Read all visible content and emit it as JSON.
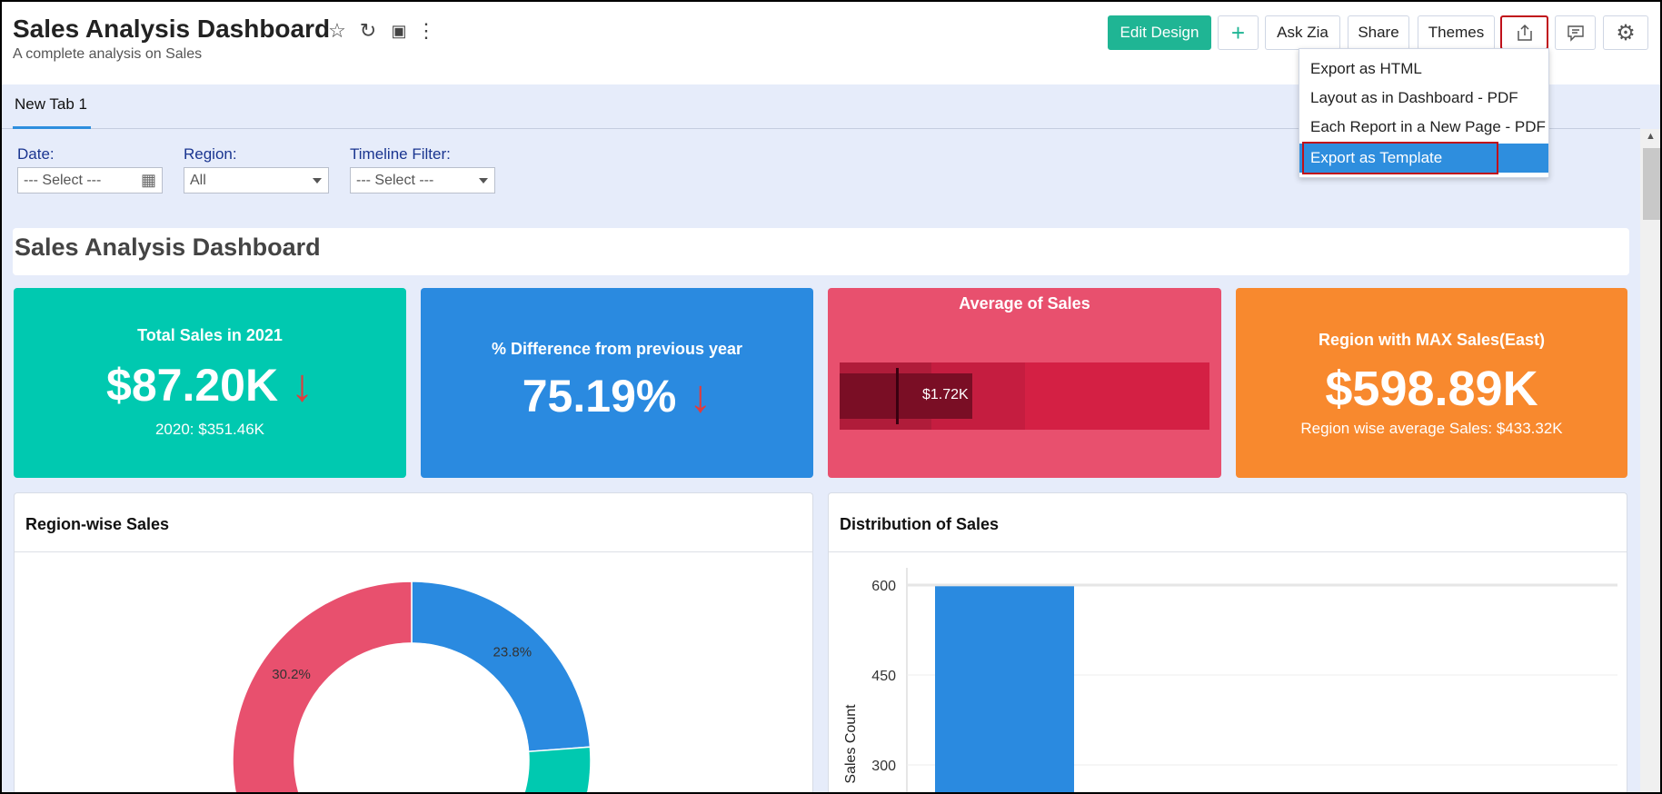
{
  "header": {
    "title": "Sales Analysis Dashboard",
    "subtitle": "A complete analysis on Sales",
    "icons": [
      "star-icon",
      "refresh-icon",
      "save-icon",
      "more-vertical-icon"
    ],
    "buttons": {
      "edit_design": "Edit Design",
      "add": "+",
      "ask_zia": "Ask Zia",
      "share": "Share",
      "themes": "Themes"
    }
  },
  "export_menu": {
    "items": [
      "Export as HTML",
      "Layout as in Dashboard - PDF",
      "Each Report in a New Page - PDF",
      "Export as Template"
    ],
    "selected": "Export as Template"
  },
  "tabs": [
    {
      "label": "New Tab 1",
      "active": true
    }
  ],
  "filters": {
    "date": {
      "label": "Date:",
      "value": "--- Select ---"
    },
    "region": {
      "label": "Region:",
      "value": "All"
    },
    "timeline": {
      "label": "Timeline Filter:",
      "value": "--- Select ---"
    }
  },
  "banner": "Sales Analysis Dashboard",
  "kpis": [
    {
      "title": "Total Sales in 2021",
      "value": "$87.20K",
      "arrow": "↓",
      "sub": "2020: $351.46K",
      "color": "#00c9b0"
    },
    {
      "title": "% Difference from previous year",
      "value": "75.19%",
      "arrow": "↓",
      "color": "#2a8ae0"
    },
    {
      "title": "Average of Sales",
      "value": "$1.72K",
      "color": "#e8506e"
    },
    {
      "title": "Region with MAX Sales(East)",
      "value": "$598.89K",
      "sub": "Region wise average Sales: $433.32K",
      "color": "#f8892e"
    }
  ],
  "chart_data": [
    {
      "type": "pie",
      "title": "Region-wise Sales",
      "donut": true,
      "segments": [
        {
          "value": 23.8,
          "label": "23.8%",
          "color": "#2a8ae0"
        },
        {
          "value": 46.0,
          "color": "#00c9b0"
        },
        {
          "value": 30.2,
          "label": "30.2%",
          "color": "#e8506e"
        }
      ]
    },
    {
      "type": "bar",
      "title": "Distribution of Sales",
      "ylabel": "Sales Count",
      "yticks": [
        300,
        450,
        600
      ],
      "ylim": [
        0,
        630
      ],
      "values": [
        598
      ],
      "color": "#2a8ae0",
      "grid": true
    }
  ]
}
